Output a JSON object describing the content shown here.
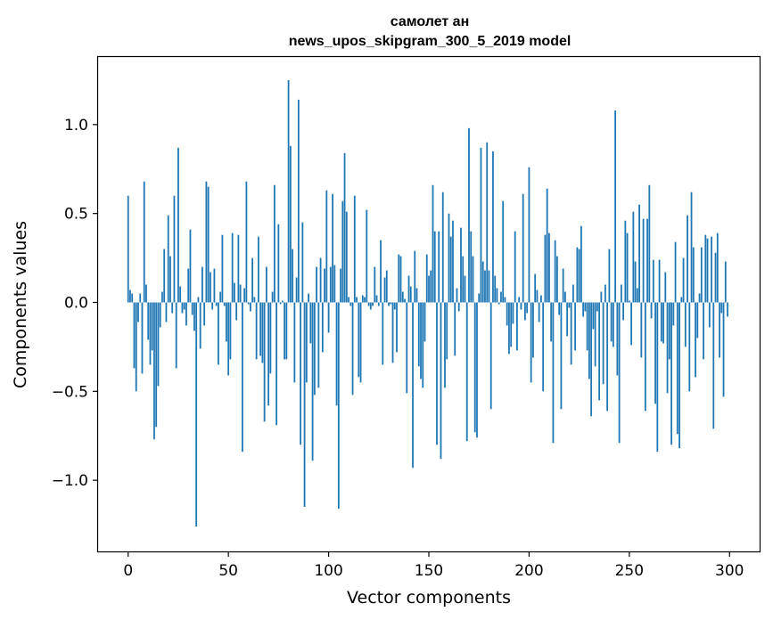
{
  "chart_data": {
    "type": "bar",
    "title_lines": [
      "самолет ан",
      "news_upos_skipgram_300_5_2019 model"
    ],
    "xlabel": "Vector components",
    "ylabel": "Components values",
    "xlim": [
      -15,
      315
    ],
    "ylim": [
      -1.4,
      1.38
    ],
    "xticks": [
      0,
      50,
      100,
      150,
      200,
      250,
      300
    ],
    "xtick_labels": [
      "0",
      "50",
      "100",
      "150",
      "200",
      "250",
      "300"
    ],
    "yticks": [
      -1.0,
      -0.5,
      0.0,
      0.5,
      1.0
    ],
    "ytick_labels": [
      "−1.0",
      "−0.5",
      "0.0",
      "0.5",
      "1.0"
    ],
    "bar_color": "#1f77b4",
    "grid": false,
    "x_start": 0,
    "values": [
      0.6,
      0.07,
      0.05,
      -0.37,
      -0.5,
      -0.11,
      0.05,
      -0.4,
      0.68,
      0.1,
      -0.21,
      -0.35,
      -0.27,
      -0.77,
      -0.7,
      -0.47,
      -0.14,
      0.06,
      0.3,
      -0.11,
      0.49,
      0.26,
      -0.06,
      0.6,
      -0.37,
      0.87,
      0.09,
      -0.06,
      -0.04,
      -0.13,
      0.19,
      0.41,
      -0.07,
      -0.16,
      -1.26,
      0.03,
      -0.26,
      0.2,
      -0.13,
      0.68,
      0.65,
      0.17,
      -0.04,
      0.19,
      -0.02,
      -0.35,
      0.06,
      0.38,
      -0.02,
      -0.22,
      -0.41,
      -0.32,
      0.39,
      0.11,
      -0.1,
      0.38,
      0.1,
      -0.84,
      0.08,
      0.68,
      -0.01,
      -0.05,
      0.25,
      0.03,
      -0.32,
      0.37,
      -0.3,
      -0.34,
      -0.67,
      0.2,
      -0.58,
      -0.4,
      0.06,
      0.66,
      -0.69,
      0.44,
      -0.01,
      0.01,
      -0.32,
      -0.32,
      1.25,
      0.88,
      0.3,
      -0.45,
      0.14,
      1.14,
      -0.8,
      0.45,
      -1.15,
      -0.45,
      0.05,
      -0.23,
      -0.89,
      -0.52,
      0.2,
      -0.48,
      0.25,
      -0.28,
      0.19,
      0.63,
      -0.17,
      0.2,
      0.61,
      0.21,
      -0.58,
      -1.16,
      0.19,
      0.57,
      0.84,
      0.51,
      0.03,
      -0.02,
      -0.52,
      0.6,
      0.03,
      -0.42,
      -0.45,
      0.04,
      0.03,
      0.52,
      -0.02,
      -0.04,
      -0.02,
      0.2,
      0.04,
      -0.02,
      0.35,
      -0.35,
      0.14,
      0.18,
      -0.02,
      -0.01,
      -0.34,
      -0.04,
      -0.28,
      0.27,
      0.26,
      0.06,
      0.02,
      -0.51,
      0.15,
      0.09,
      -0.93,
      0.29,
      0.08,
      -0.36,
      -0.43,
      -0.48,
      -0.22,
      0.27,
      0.15,
      0.18,
      0.66,
      0.4,
      -0.8,
      0.4,
      -0.88,
      0.62,
      -0.48,
      -0.32,
      0.5,
      0.37,
      0.46,
      -0.3,
      0.08,
      -0.05,
      0.42,
      0.26,
      0.15,
      -0.78,
      0.98,
      0.4,
      0.26,
      -0.73,
      -0.76,
      0.05,
      0.87,
      0.23,
      0.18,
      0.9,
      0.18,
      -0.6,
      0.85,
      0.15,
      0.08,
      -0.01,
      0.06,
      0.57,
      0.03,
      -0.13,
      -0.29,
      -0.25,
      -0.12,
      0.4,
      -0.27,
      0.03,
      -0.04,
      0.61,
      -0.1,
      -0.06,
      0.76,
      -0.45,
      -0.31,
      0.16,
      0.07,
      -0.11,
      0.04,
      -0.5,
      0.38,
      0.64,
      0.39,
      -0.22,
      -0.79,
      0.35,
      0.26,
      -0.07,
      -0.6,
      0.19,
      0.06,
      -0.19,
      -0.03,
      -0.35,
      0.1,
      -0.27,
      0.31,
      0.3,
      0.43,
      -0.08,
      -0.05,
      -0.27,
      -0.43,
      -0.64,
      -0.15,
      -0.36,
      -0.05,
      -0.55,
      0.06,
      -0.46,
      0.1,
      -0.61,
      0.3,
      -0.22,
      -0.25,
      1.08,
      -0.41,
      -0.79,
      0.1,
      -0.1,
      0.46,
      0.39,
      0.01,
      -0.24,
      0.51,
      0.23,
      0.08,
      0.55,
      -0.31,
      0.47,
      -0.61,
      0.47,
      0.66,
      -0.09,
      0.24,
      -0.57,
      -0.84,
      0.24,
      -0.22,
      -0.23,
      0.17,
      -0.51,
      -0.32,
      -0.8,
      -0.13,
      0.34,
      -0.74,
      -0.82,
      0.03,
      0.25,
      -0.25,
      0.49,
      -0.5,
      0.62,
      0.31,
      -0.42,
      -0.2,
      0.05,
      0.31,
      -0.32,
      0.38,
      0.36,
      -0.14,
      0.37,
      -0.71,
      0.28,
      0.39,
      -0.31,
      -0.06,
      -0.53,
      0.23,
      -0.08
    ]
  }
}
